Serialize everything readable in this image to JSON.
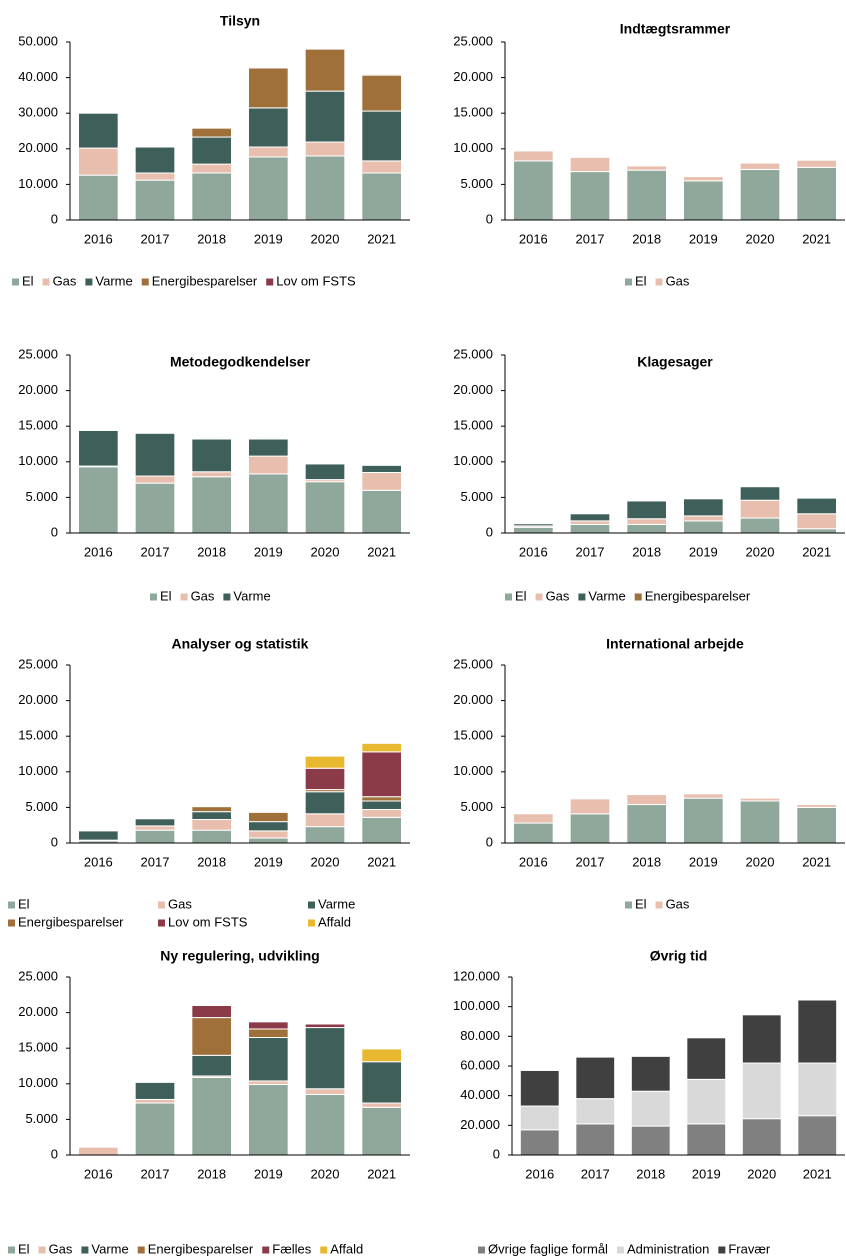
{
  "chart_data": [
    {
      "type": "bar",
      "stacked": true,
      "title": "Tilsyn",
      "categories": [
        "2016",
        "2017",
        "2018",
        "2019",
        "2020",
        "2021"
      ],
      "series": [
        {
          "name": "El",
          "color": "#8fa89b",
          "values": [
            12600,
            11200,
            13200,
            17700,
            18000,
            13200
          ]
        },
        {
          "name": "Gas",
          "color": "#e8bfae",
          "values": [
            7600,
            2000,
            2500,
            2800,
            3900,
            3400
          ]
        },
        {
          "name": "Varme",
          "color": "#3f5f5a",
          "values": [
            9800,
            7300,
            7600,
            11000,
            14300,
            14000
          ]
        },
        {
          "name": "Energibesparelser",
          "color": "#a0703a",
          "values": [
            0,
            0,
            2500,
            11200,
            11800,
            10100
          ]
        },
        {
          "name": "Lov om FSTS",
          "color": "#8b3a48",
          "values": [
            0,
            0,
            0,
            0,
            0,
            300
          ]
        }
      ],
      "ylim": [
        0,
        50000
      ],
      "yticks": [
        0,
        {
          "value": 10000,
          "label": "10.000"
        },
        {
          "value": 20000,
          "label": "20.000"
        },
        {
          "value": 30000,
          "label": "30.000"
        },
        {
          "value": 40000,
          "label": "40.000"
        },
        {
          "value": 50000,
          "label": "50.000"
        }
      ]
    },
    {
      "type": "bar",
      "stacked": true,
      "title": "Indtægtsrammer",
      "categories": [
        "2016",
        "2017",
        "2018",
        "2019",
        "2020",
        "2021"
      ],
      "series": [
        {
          "name": "El",
          "color": "#8fa89b",
          "values": [
            8300,
            6800,
            7000,
            5500,
            7100,
            7400
          ]
        },
        {
          "name": "Gas",
          "color": "#e8bfae",
          "values": [
            1400,
            2000,
            600,
            600,
            900,
            1000
          ]
        }
      ],
      "ylim": [
        0,
        25000
      ],
      "yticks": [
        0,
        {
          "value": 5000,
          "label": "5.000"
        },
        {
          "value": 10000,
          "label": "10.000"
        },
        {
          "value": 15000,
          "label": "15.000"
        },
        {
          "value": 20000,
          "label": "20.000"
        },
        {
          "value": 25000,
          "label": "25.000"
        }
      ]
    },
    {
      "type": "bar",
      "stacked": true,
      "title": "Metodegodkendelser",
      "categories": [
        "2016",
        "2017",
        "2018",
        "2019",
        "2020",
        "2021"
      ],
      "series": [
        {
          "name": "El",
          "color": "#8fa89b",
          "values": [
            9300,
            7000,
            7900,
            8300,
            7200,
            6000
          ]
        },
        {
          "name": "Gas",
          "color": "#e8bfae",
          "values": [
            100,
            1000,
            700,
            2500,
            300,
            2500
          ]
        },
        {
          "name": "Varme",
          "color": "#3f5f5a",
          "values": [
            5000,
            6000,
            4600,
            2400,
            2200,
            1000
          ]
        }
      ],
      "ylim": [
        0,
        25000
      ],
      "yticks": [
        0,
        {
          "value": 5000,
          "label": "5.000"
        },
        {
          "value": 10000,
          "label": "10.000"
        },
        {
          "value": 15000,
          "label": "15.000"
        },
        {
          "value": 20000,
          "label": "20.000"
        },
        {
          "value": 25000,
          "label": "25.000"
        }
      ]
    },
    {
      "type": "bar",
      "stacked": true,
      "title": "Klagesager",
      "categories": [
        "2016",
        "2017",
        "2018",
        "2019",
        "2020",
        "2021"
      ],
      "series": [
        {
          "name": "El",
          "color": "#8fa89b",
          "values": [
            800,
            1200,
            1200,
            1700,
            2100,
            600
          ]
        },
        {
          "name": "Gas",
          "color": "#e8bfae",
          "values": [
            200,
            500,
            800,
            700,
            2500,
            2100
          ]
        },
        {
          "name": "Varme",
          "color": "#3f5f5a",
          "values": [
            300,
            1000,
            2500,
            2400,
            1900,
            2200
          ]
        },
        {
          "name": "Energibesparelser",
          "color": "#a0703a",
          "values": [
            0,
            0,
            0,
            0,
            0,
            0
          ]
        }
      ],
      "ylim": [
        0,
        25000
      ],
      "yticks": [
        0,
        {
          "value": 5000,
          "label": "5.000"
        },
        {
          "value": 10000,
          "label": "10.000"
        },
        {
          "value": 15000,
          "label": "15.000"
        },
        {
          "value": 20000,
          "label": "20.000"
        },
        {
          "value": 25000,
          "label": "25.000"
        }
      ]
    },
    {
      "type": "bar",
      "stacked": true,
      "title": "Analyser og statistik",
      "categories": [
        "2016",
        "2017",
        "2018",
        "2019",
        "2020",
        "2021"
      ],
      "series": [
        {
          "name": "El",
          "color": "#8fa89b",
          "values": [
            300,
            1800,
            1800,
            700,
            2300,
            3600
          ]
        },
        {
          "name": "Gas",
          "color": "#e8bfae",
          "values": [
            100,
            600,
            1500,
            1000,
            1800,
            1100
          ]
        },
        {
          "name": "Varme",
          "color": "#3f5f5a",
          "values": [
            1300,
            1000,
            1100,
            1300,
            3100,
            1200
          ]
        },
        {
          "name": "Energibesparelser",
          "color": "#a0703a",
          "values": [
            0,
            0,
            700,
            1300,
            300,
            600
          ]
        },
        {
          "name": "Lov om FSTS",
          "color": "#8b3a48",
          "values": [
            0,
            0,
            0,
            0,
            3000,
            6300
          ]
        },
        {
          "name": "Affald",
          "color": "#e8b830",
          "values": [
            0,
            0,
            0,
            0,
            1700,
            1200
          ]
        }
      ],
      "ylim": [
        0,
        25000
      ],
      "yticks": [
        0,
        {
          "value": 5000,
          "label": "5.000"
        },
        {
          "value": 10000,
          "label": "10.000"
        },
        {
          "value": 15000,
          "label": "15.000"
        },
        {
          "value": 20000,
          "label": "20.000"
        },
        {
          "value": 25000,
          "label": "25.000"
        }
      ]
    },
    {
      "type": "bar",
      "stacked": true,
      "title": "International arbejde",
      "categories": [
        "2016",
        "2017",
        "2018",
        "2019",
        "2020",
        "2021"
      ],
      "series": [
        {
          "name": "El",
          "color": "#8fa89b",
          "values": [
            2800,
            4100,
            5400,
            6300,
            5900,
            5000
          ]
        },
        {
          "name": "Gas",
          "color": "#e8bfae",
          "values": [
            1300,
            2100,
            1400,
            600,
            400,
            400
          ]
        }
      ],
      "ylim": [
        0,
        25000
      ],
      "yticks": [
        0,
        {
          "value": 5000,
          "label": "5.000"
        },
        {
          "value": 10000,
          "label": "10.000"
        },
        {
          "value": 15000,
          "label": "15.000"
        },
        {
          "value": 20000,
          "label": "20.000"
        },
        {
          "value": 25000,
          "label": "25.000"
        }
      ]
    },
    {
      "type": "bar",
      "stacked": true,
      "title": "Ny regulering, udvikling",
      "categories": [
        "2016",
        "2017",
        "2018",
        "2019",
        "2020",
        "2021"
      ],
      "series": [
        {
          "name": "El",
          "color": "#8fa89b",
          "values": [
            0,
            7300,
            10900,
            9900,
            8500,
            6700
          ]
        },
        {
          "name": "Gas",
          "color": "#e8bfae",
          "values": [
            1100,
            500,
            200,
            500,
            800,
            600
          ]
        },
        {
          "name": "Varme",
          "color": "#3f5f5a",
          "values": [
            0,
            2400,
            2900,
            6100,
            8600,
            5800
          ]
        },
        {
          "name": "Energibesparelser",
          "color": "#a0703a",
          "values": [
            0,
            0,
            5300,
            1200,
            0,
            0
          ]
        },
        {
          "name": "Fælles",
          "color": "#8b3a48",
          "values": [
            0,
            0,
            1700,
            1000,
            500,
            0
          ]
        },
        {
          "name": "Affald",
          "color": "#e8b830",
          "values": [
            0,
            0,
            0,
            0,
            0,
            1800
          ]
        }
      ],
      "ylim": [
        0,
        25000
      ],
      "yticks": [
        0,
        {
          "value": 5000,
          "label": "5.000"
        },
        {
          "value": 10000,
          "label": "10.000"
        },
        {
          "value": 15000,
          "label": "15.000"
        },
        {
          "value": 20000,
          "label": "20.000"
        },
        {
          "value": 25000,
          "label": "25.000"
        }
      ]
    },
    {
      "type": "bar",
      "stacked": true,
      "title": "Øvrig tid",
      "categories": [
        "2016",
        "2017",
        "2018",
        "2019",
        "2020",
        "2021"
      ],
      "series": [
        {
          "name": "Øvrige faglige formål",
          "color": "#808080",
          "values": [
            17000,
            21000,
            19500,
            21000,
            24500,
            26500
          ]
        },
        {
          "name": "Administration",
          "color": "#d9d9d9",
          "values": [
            16000,
            17000,
            23500,
            30000,
            37500,
            35500
          ]
        },
        {
          "name": "Fravær",
          "color": "#404040",
          "values": [
            24000,
            28000,
            23500,
            28000,
            32500,
            42500
          ]
        }
      ],
      "ylim": [
        0,
        120000
      ],
      "yticks": [
        0,
        {
          "value": 20000,
          "label": "20.000"
        },
        {
          "value": 40000,
          "label": "40.000"
        },
        {
          "value": 60000,
          "label": "60.000"
        },
        {
          "value": 80000,
          "label": "80.000"
        },
        {
          "value": 100000,
          "label": "100.000"
        },
        {
          "value": 120000,
          "label": "120.000"
        }
      ]
    }
  ]
}
